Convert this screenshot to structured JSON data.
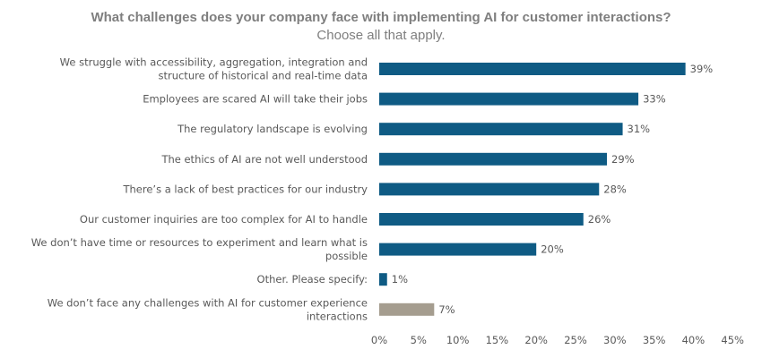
{
  "chart_data": {
    "type": "bar",
    "orientation": "horizontal",
    "title": "What challenges does your company face with implementing AI for customer interactions?",
    "subtitle": "Choose all that apply.",
    "categories": [
      [
        "We struggle with accessibility, aggregation, integration and",
        "structure of historical and real-time data"
      ],
      [
        "Employees are scared AI will take their jobs"
      ],
      [
        "The regulatory landscape is evolving"
      ],
      [
        "The ethics of AI are not well understood"
      ],
      [
        "There’s a lack of best practices for our industry"
      ],
      [
        "Our customer inquiries are too complex for AI to handle"
      ],
      [
        "We don’t have time or resources to experiment and learn what is",
        "possible"
      ],
      [
        "Other. Please specify:"
      ],
      [
        "We don’t face any challenges with AI for customer experience",
        "interactions"
      ]
    ],
    "values": [
      39,
      33,
      31,
      29,
      28,
      26,
      20,
      1,
      7
    ],
    "value_labels": [
      "39%",
      "33%",
      "31%",
      "29%",
      "28%",
      "26%",
      "20%",
      "1%",
      "7%"
    ],
    "bar_colors": [
      "#0f5b84",
      "#0f5b84",
      "#0f5b84",
      "#0f5b84",
      "#0f5b84",
      "#0f5b84",
      "#0f5b84",
      "#0f5b84",
      "#a59d8f"
    ],
    "xlim": [
      0,
      45
    ],
    "x_ticks": [
      "0%",
      "5%",
      "10%",
      "15%",
      "20%",
      "25%",
      "30%",
      "35%",
      "40%",
      "45%"
    ],
    "grid": false,
    "legend": "none"
  }
}
